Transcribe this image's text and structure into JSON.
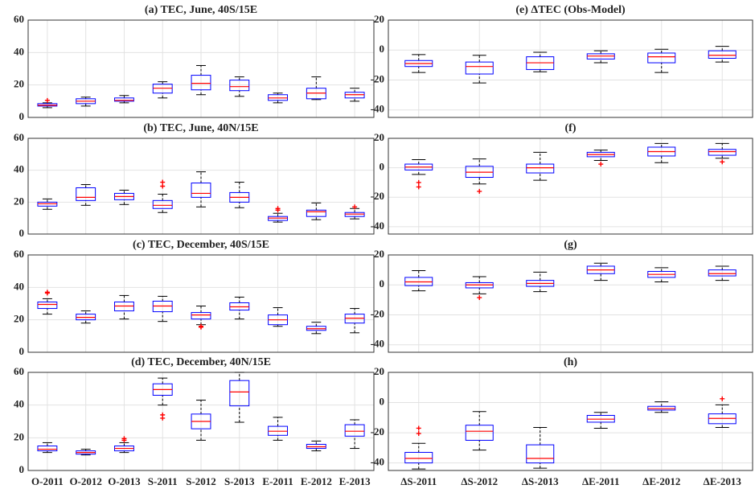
{
  "box_color": "#0000ff",
  "median_color": "#ff0000",
  "whisker_color": "#000000",
  "outlier_color": "#ff0000",
  "chart_data": [
    {
      "type": "box",
      "title": "(a) TEC, June, 40S/15E",
      "ylim": [
        0,
        60
      ],
      "yticks": [
        0,
        20,
        40,
        60
      ],
      "grid": true,
      "boxes": [
        {
          "min": 6,
          "q1": 7,
          "median": 7.5,
          "q3": 8.5,
          "max": 9,
          "outliers": [
            10.5
          ]
        },
        {
          "min": 7,
          "q1": 8.5,
          "median": 10,
          "q3": 11.5,
          "max": 12.5
        },
        {
          "min": 9,
          "q1": 10,
          "median": 10.5,
          "q3": 12,
          "max": 13.5
        },
        {
          "min": 12,
          "q1": 15,
          "median": 18,
          "q3": 20.5,
          "max": 22
        },
        {
          "min": 14,
          "q1": 17,
          "median": 21,
          "q3": 26,
          "max": 32
        },
        {
          "min": 13,
          "q1": 16.5,
          "median": 19,
          "q3": 23,
          "max": 25
        },
        {
          "min": 9,
          "q1": 10.5,
          "median": 12,
          "q3": 14,
          "max": 15
        },
        {
          "min": 11,
          "q1": 11.5,
          "median": 15,
          "q3": 18,
          "max": 25
        },
        {
          "min": 10,
          "q1": 12,
          "median": 14,
          "q3": 15.5,
          "max": 18
        }
      ]
    },
    {
      "type": "box",
      "title": "(b) TEC, June, 40N/15E",
      "ylim": [
        0,
        60
      ],
      "yticks": [
        0,
        20,
        40,
        60
      ],
      "grid": true,
      "boxes": [
        {
          "min": 15.5,
          "q1": 17.5,
          "median": 19,
          "q3": 20,
          "max": 22
        },
        {
          "min": 18,
          "q1": 21,
          "median": 23,
          "q3": 29,
          "max": 31
        },
        {
          "min": 18.5,
          "q1": 21.5,
          "median": 23.5,
          "q3": 25.5,
          "max": 27.5
        },
        {
          "min": 13.5,
          "q1": 16,
          "median": 18,
          "q3": 21,
          "max": 25,
          "outliers": [
            30,
            32.5
          ]
        },
        {
          "min": 17,
          "q1": 23,
          "median": 25.5,
          "q3": 32,
          "max": 39
        },
        {
          "min": 16.5,
          "q1": 20,
          "median": 23,
          "q3": 26,
          "max": 32.5
        },
        {
          "min": 7.5,
          "q1": 8.5,
          "median": 10,
          "q3": 11,
          "max": 13,
          "outliers": [
            15,
            16
          ]
        },
        {
          "min": 9,
          "q1": 11,
          "median": 14,
          "q3": 15,
          "max": 19.5
        },
        {
          "min": 9.5,
          "q1": 11,
          "median": 12.5,
          "q3": 13.5,
          "max": 16,
          "outliers": [
            17
          ]
        }
      ]
    },
    {
      "type": "box",
      "title": "(c) TEC, December, 40S/15E",
      "ylim": [
        0,
        60
      ],
      "yticks": [
        0,
        20,
        40,
        60
      ],
      "grid": true,
      "boxes": [
        {
          "min": 23.5,
          "q1": 27,
          "median": 29.5,
          "q3": 31,
          "max": 33,
          "outliers": [
            36.5,
            37
          ]
        },
        {
          "min": 18,
          "q1": 20,
          "median": 21.5,
          "q3": 23.5,
          "max": 25.5
        },
        {
          "min": 20.5,
          "q1": 25.5,
          "median": 28.5,
          "q3": 31,
          "max": 35
        },
        {
          "min": 19,
          "q1": 25,
          "median": 28.5,
          "q3": 31.5,
          "max": 34.5
        },
        {
          "min": 17,
          "q1": 20.5,
          "median": 23,
          "q3": 24.5,
          "max": 28.5,
          "outliers": [
            16,
            15.5
          ]
        },
        {
          "min": 20.5,
          "q1": 26,
          "median": 28,
          "q3": 30.5,
          "max": 34
        },
        {
          "min": 16,
          "q1": 17,
          "median": 20,
          "q3": 23,
          "max": 27.5
        },
        {
          "min": 11.5,
          "q1": 13.5,
          "median": 14.5,
          "q3": 16,
          "max": 18.5
        },
        {
          "min": 12,
          "q1": 18,
          "median": 21,
          "q3": 23.5,
          "max": 27
        }
      ]
    },
    {
      "type": "box",
      "title": "(d) TEC, December, 40N/15E",
      "ylim": [
        0,
        60
      ],
      "yticks": [
        0,
        20,
        40,
        60
      ],
      "grid": true,
      "categories": [
        "O-2011",
        "O-2012",
        "O-2013",
        "S-2011",
        "S-2012",
        "S-2013",
        "E-2011",
        "E-2012",
        "E-2013"
      ],
      "boxes": [
        {
          "min": 11,
          "q1": 12,
          "median": 13,
          "q3": 15,
          "max": 17
        },
        {
          "min": 9.5,
          "q1": 10,
          "median": 11,
          "q3": 12,
          "max": 13
        },
        {
          "min": 11,
          "q1": 12,
          "median": 13.5,
          "q3": 15,
          "max": 17,
          "outliers": [
            18.5,
            19.5
          ]
        },
        {
          "min": 40,
          "q1": 46,
          "median": 49.5,
          "q3": 53,
          "max": 56.5,
          "outliers": [
            34,
            32
          ]
        },
        {
          "min": 18.5,
          "q1": 25.5,
          "median": 30,
          "q3": 34.5,
          "max": 43
        },
        {
          "min": 29.5,
          "q1": 39.5,
          "median": 48,
          "q3": 55,
          "max": 60
        },
        {
          "min": 18.5,
          "q1": 21.5,
          "median": 24,
          "q3": 27,
          "max": 32.5
        },
        {
          "min": 12,
          "q1": 13.5,
          "median": 14.5,
          "q3": 16,
          "max": 18
        },
        {
          "min": 13.5,
          "q1": 21,
          "median": 24,
          "q3": 28,
          "max": 31
        }
      ]
    },
    {
      "type": "box",
      "title": "(e)  ΔTEC (Obs-Model)",
      "ylim": [
        -45,
        20
      ],
      "yticks": [
        -40,
        -20,
        0,
        20
      ],
      "grid": true,
      "boxes": [
        {
          "min": -15,
          "q1": -11,
          "median": -9,
          "q3": -7,
          "max": -3
        },
        {
          "min": -22,
          "q1": -16,
          "median": -11,
          "q3": -8,
          "max": -3.5
        },
        {
          "min": -14.5,
          "q1": -13,
          "median": -8.5,
          "q3": -4.5,
          "max": -1.5
        },
        {
          "min": -8.5,
          "q1": -6,
          "median": -4,
          "q3": -2.5,
          "max": -0.5
        },
        {
          "min": -15,
          "q1": -8.5,
          "median": -4.5,
          "q3": -2,
          "max": 0.5
        },
        {
          "min": -8,
          "q1": -5.5,
          "median": -3.5,
          "q3": -0.5,
          "max": 2.5
        }
      ]
    },
    {
      "type": "box",
      "title": "(f)",
      "ylim": [
        -45,
        20
      ],
      "yticks": [
        -40,
        -20,
        0,
        20
      ],
      "grid": true,
      "boxes": [
        {
          "min": -4.5,
          "q1": -1.5,
          "median": 0.5,
          "q3": 2.5,
          "max": 5.5,
          "outliers": [
            -10,
            -13
          ]
        },
        {
          "min": -11,
          "q1": -6.5,
          "median": -3,
          "q3": 1,
          "max": 6,
          "outliers": [
            -16
          ]
        },
        {
          "min": -8.5,
          "q1": -3.5,
          "median": 0,
          "q3": 2.5,
          "max": 10.5
        },
        {
          "min": 5,
          "q1": 7.5,
          "median": 9,
          "q3": 10.5,
          "max": 12,
          "outliers": [
            2.5
          ]
        },
        {
          "min": 3.5,
          "q1": 8,
          "median": 11,
          "q3": 14,
          "max": 16.5
        },
        {
          "min": 6.5,
          "q1": 8.5,
          "median": 11,
          "q3": 12.5,
          "max": 16.5,
          "outliers": [
            4
          ]
        }
      ]
    },
    {
      "type": "box",
      "title": "(g)",
      "ylim": [
        -45,
        20
      ],
      "yticks": [
        -40,
        -20,
        0,
        20
      ],
      "grid": true,
      "boxes": [
        {
          "min": -4,
          "q1": -0.5,
          "median": 2,
          "q3": 5,
          "max": 9.5
        },
        {
          "min": -6,
          "q1": -2,
          "median": 0,
          "q3": 1.5,
          "max": 5.5,
          "outliers": [
            -8.5
          ]
        },
        {
          "min": -4.5,
          "q1": -1,
          "median": 1,
          "q3": 3,
          "max": 8.5
        },
        {
          "min": 3,
          "q1": 7.5,
          "median": 10,
          "q3": 12.5,
          "max": 14.5
        },
        {
          "min": 2,
          "q1": 5,
          "median": 7,
          "q3": 9,
          "max": 11.5
        },
        {
          "min": 3,
          "q1": 6,
          "median": 7.5,
          "q3": 10,
          "max": 12.5
        }
      ]
    },
    {
      "type": "box",
      "title": "(h)",
      "ylim": [
        -45,
        20
      ],
      "yticks": [
        -40,
        -20,
        0,
        20
      ],
      "grid": true,
      "categories": [
        "ΔS-2011",
        "ΔS-2012",
        "ΔS-2013",
        "ΔE-2011",
        "ΔE-2012",
        "ΔE-2013"
      ],
      "boxes": [
        {
          "min": -44,
          "q1": -40,
          "median": -37,
          "q3": -33,
          "max": -27,
          "outliers": [
            -17,
            -20.5
          ]
        },
        {
          "min": -31.5,
          "q1": -25,
          "median": -19,
          "q3": -15,
          "max": -6
        },
        {
          "min": -43.5,
          "q1": -40,
          "median": -37,
          "q3": -28,
          "max": -16.5
        },
        {
          "min": -17,
          "q1": -13,
          "median": -11,
          "q3": -8.5,
          "max": -6.5
        },
        {
          "min": -6.5,
          "q1": -5,
          "median": -4,
          "q3": -2.5,
          "max": 0.5
        },
        {
          "min": -16.5,
          "q1": -14,
          "median": -10.5,
          "q3": -7.5,
          "max": -1.5,
          "outliers": [
            2.5
          ]
        }
      ]
    }
  ]
}
